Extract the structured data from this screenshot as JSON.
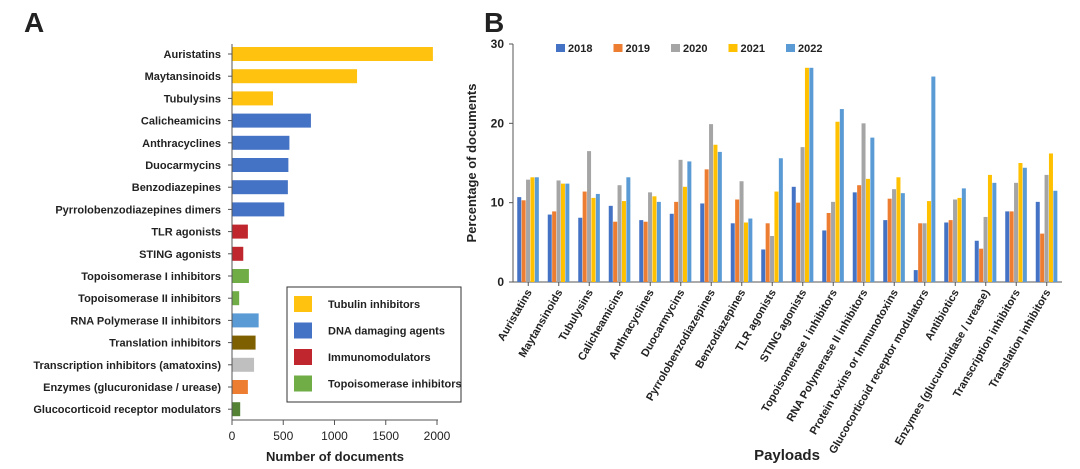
{
  "figure": {
    "panel_a_label": "A",
    "panel_b_label": "B"
  },
  "colors": {
    "tubulin": "#FFC20E",
    "dna": "#4472C4",
    "immuno": "#C0262D",
    "topo": "#70AD47",
    "rnapol": "#5B9BD5",
    "translation": "#7F6000",
    "transcription": "#BFBFBF",
    "enzymes": "#ED7D31",
    "gcr": "#548235",
    "y2018": "#4472C4",
    "y2019": "#ED7D31",
    "y2020": "#A5A5A5",
    "y2021": "#FFC000",
    "y2022": "#5B9BD5"
  },
  "chart_data": [
    {
      "panel": "A",
      "type": "bar",
      "orientation": "horizontal",
      "title": "",
      "xlabel": "Number of documents",
      "ylabel": "",
      "xlim": [
        0,
        2000
      ],
      "xticks": [
        0,
        500,
        1000,
        1500,
        2000
      ],
      "categories": [
        "Auristatins",
        "Maytansinoids",
        "Tubulysins",
        "Calicheamicins",
        "Anthracyclines",
        "Duocarmycins",
        "Benzodiazepines",
        "Pyrrolobenzodiazepines dimers",
        "TLR agonists",
        "STING agonists",
        "Topoisomerase I inhibitors",
        "Topoisomerase II inhibitors",
        "RNA Polymerase II inhibitors",
        "Translation inhibitors",
        "Transcription inhibitors (amatoxins)",
        "Enzymes (glucuronidase / urease)",
        "Glucocorticoid receptor modulators"
      ],
      "values": [
        1960,
        1220,
        400,
        770,
        560,
        550,
        545,
        510,
        155,
        110,
        165,
        70,
        260,
        230,
        215,
        155,
        80
      ],
      "bar_colors": [
        "tubulin",
        "tubulin",
        "tubulin",
        "dna",
        "dna",
        "dna",
        "dna",
        "dna",
        "immuno",
        "immuno",
        "topo",
        "topo",
        "rnapol",
        "translation",
        "transcription",
        "enzymes",
        "gcr"
      ],
      "legend": [
        {
          "label": "Tubulin inhibitors",
          "color": "tubulin"
        },
        {
          "label": "DNA damaging agents",
          "color": "dna"
        },
        {
          "label": "Immunomodulators",
          "color": "immuno"
        },
        {
          "label": "Topoisomerase inhibitors",
          "color": "topo"
        }
      ]
    },
    {
      "panel": "B",
      "type": "bar",
      "title": "",
      "xlabel": "Payloads",
      "ylabel": "Percentage of documents",
      "ylim": [
        0,
        30
      ],
      "yticks": [
        0,
        10,
        20,
        30
      ],
      "categories": [
        "Auristatins",
        "Maytansinoids",
        "Tubulysins",
        "Calicheamicins",
        "Anthracyclines",
        "Duocarmycins",
        "Pyrrolobenzodiazepines",
        "Benzodiazepines",
        "TLR agonists",
        "STING agonists",
        "Topoisomerase I inhibitors",
        "RNA Polymerase II inhibitors",
        "Protein toxins or Immunotoxins",
        "Glucocorticoid receptor modulators",
        "Antibiotics",
        "Enzymes (glucuronidase / urease)",
        "Transcription inhibitors",
        "Translation inhibitors"
      ],
      "series": [
        {
          "name": "2018",
          "color": "y2018",
          "values": [
            10.7,
            8.5,
            8.1,
            9.6,
            7.8,
            8.6,
            9.9,
            7.4,
            4.1,
            12.0,
            6.5,
            11.3,
            7.8,
            1.5,
            7.5,
            5.2,
            8.9,
            10.1
          ]
        },
        {
          "name": "2019",
          "color": "y2019",
          "values": [
            10.3,
            8.9,
            11.4,
            7.6,
            7.6,
            10.1,
            14.2,
            10.4,
            7.4,
            10.0,
            8.7,
            12.2,
            10.5,
            7.4,
            7.8,
            4.2,
            8.9,
            6.1
          ]
        },
        {
          "name": "2020",
          "color": "y2020",
          "values": [
            12.9,
            12.8,
            16.5,
            12.2,
            11.3,
            15.4,
            19.9,
            12.7,
            5.8,
            17.0,
            10.1,
            20.0,
            11.7,
            7.4,
            10.4,
            8.2,
            12.5,
            13.5
          ]
        },
        {
          "name": "2021",
          "color": "y2021",
          "values": [
            13.2,
            12.4,
            10.6,
            10.2,
            10.8,
            12.0,
            17.3,
            7.5,
            11.4,
            27.0,
            20.2,
            13.0,
            13.2,
            10.2,
            10.6,
            13.5,
            15.0,
            16.2
          ]
        },
        {
          "name": "2022",
          "color": "y2022",
          "values": [
            13.2,
            12.4,
            11.1,
            13.2,
            10.1,
            15.2,
            16.4,
            8.0,
            15.6,
            27.0,
            21.8,
            18.2,
            11.2,
            25.9,
            11.8,
            12.5,
            14.4,
            11.5
          ]
        }
      ]
    }
  ]
}
